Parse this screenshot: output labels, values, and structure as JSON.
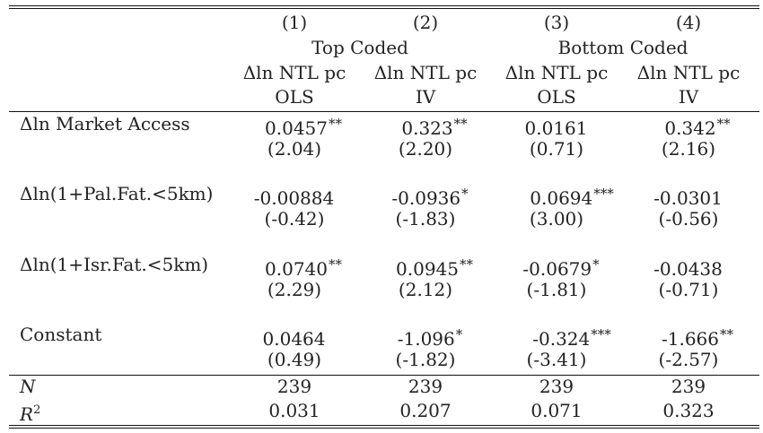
{
  "table": {
    "columns": [
      {
        "number": "(1)",
        "dep": "Δln NTL pc",
        "method": "OLS"
      },
      {
        "number": "(2)",
        "dep": "Δln NTL pc",
        "method": "IV"
      },
      {
        "number": "(3)",
        "dep": "Δln NTL pc",
        "method": "OLS"
      },
      {
        "number": "(4)",
        "dep": "Δln NTL pc",
        "method": "IV"
      }
    ],
    "groups": [
      {
        "label": "Top Coded"
      },
      {
        "label": "Bottom Coded"
      }
    ],
    "rows": [
      {
        "label": "Δln Market Access",
        "coefs": [
          {
            "value": "0.0457",
            "stars": "**"
          },
          {
            "value": "0.323",
            "stars": "**"
          },
          {
            "value": "0.0161",
            "stars": ""
          },
          {
            "value": "0.342",
            "stars": "**"
          }
        ],
        "tstats": [
          "(2.04)",
          "(2.20)",
          "(0.71)",
          "(2.16)"
        ]
      },
      {
        "label": "Δln(1+Pal.Fat.<5km)",
        "coefs": [
          {
            "value": "-0.00884",
            "stars": ""
          },
          {
            "value": "-0.0936",
            "stars": "*"
          },
          {
            "value": "0.0694",
            "stars": "***"
          },
          {
            "value": "-0.0301",
            "stars": ""
          }
        ],
        "tstats": [
          "(-0.42)",
          "(-1.83)",
          "(3.00)",
          "(-0.56)"
        ]
      },
      {
        "label": "Δln(1+Isr.Fat.<5km)",
        "coefs": [
          {
            "value": "0.0740",
            "stars": "**"
          },
          {
            "value": "0.0945",
            "stars": "**"
          },
          {
            "value": "-0.0679",
            "stars": "*"
          },
          {
            "value": "-0.0438",
            "stars": ""
          }
        ],
        "tstats": [
          "(2.29)",
          "(2.12)",
          "(-1.81)",
          "(-0.71)"
        ]
      },
      {
        "label": "Constant",
        "coefs": [
          {
            "value": "0.0464",
            "stars": ""
          },
          {
            "value": "-1.096",
            "stars": "*"
          },
          {
            "value": "-0.324",
            "stars": "***"
          },
          {
            "value": "-1.666",
            "stars": "**"
          }
        ],
        "tstats": [
          "(0.49)",
          "(-1.82)",
          "(-3.41)",
          "(-2.57)"
        ]
      }
    ],
    "stats": [
      {
        "label": "N",
        "values": [
          "239",
          "239",
          "239",
          "239"
        ]
      },
      {
        "label": "R",
        "sup": "2",
        "values": [
          "0.031",
          "0.207",
          "0.071",
          "0.323"
        ]
      }
    ]
  }
}
